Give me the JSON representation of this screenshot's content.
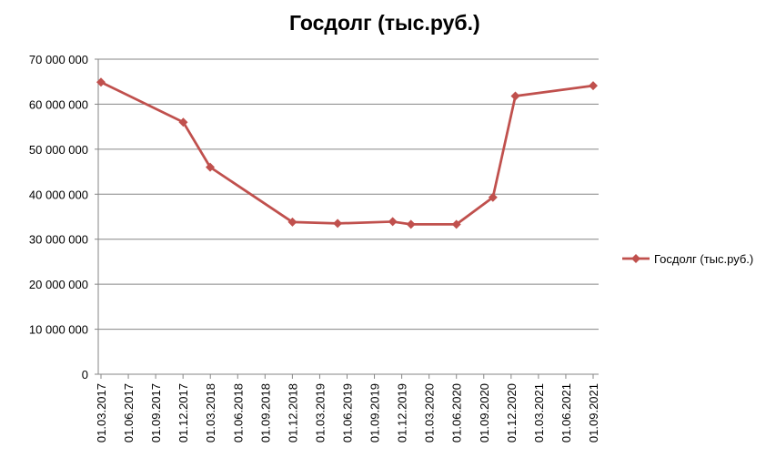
{
  "chart_data": {
    "type": "line",
    "title": "Госдолг (тыс.руб.)",
    "xlabel": "",
    "ylabel": "",
    "ylim": [
      0,
      70000000
    ],
    "y_ticks": [
      0,
      10000000,
      20000000,
      30000000,
      40000000,
      50000000,
      60000000,
      70000000
    ],
    "y_tick_labels": [
      "0",
      "10 000 000",
      "20 000 000",
      "30 000 000",
      "40 000 000",
      "50 000 000",
      "60 000 000",
      "70 000 000"
    ],
    "x_tick_labels": [
      "01.03.2017",
      "01.06.2017",
      "01.09.2017",
      "01.12.2017",
      "01.03.2018",
      "01.06.2018",
      "01.09.2018",
      "01.12.2018",
      "01.03.2019",
      "01.06.2019",
      "01.09.2019",
      "01.12.2019",
      "01.03.2020",
      "01.06.2020",
      "01.09.2020",
      "01.12.2020",
      "01.03.2021",
      "01.06.2021",
      "01.09.2021"
    ],
    "xlim": [
      "2017-03-01",
      "2021-09-01"
    ],
    "grid": true,
    "legend": "right",
    "series": [
      {
        "name": "Госдолг (тыс.руб.)",
        "color": "#c0504d",
        "marker": "diamond",
        "points": [
          {
            "x": "2017-03-01",
            "y": 64900000
          },
          {
            "x": "2017-12-01",
            "y": 56000000
          },
          {
            "x": "2018-03-01",
            "y": 46000000
          },
          {
            "x": "2018-12-01",
            "y": 33800000
          },
          {
            "x": "2019-05-01",
            "y": 33500000
          },
          {
            "x": "2019-11-01",
            "y": 33900000
          },
          {
            "x": "2020-01-01",
            "y": 33300000
          },
          {
            "x": "2020-06-01",
            "y": 33300000
          },
          {
            "x": "2020-10-01",
            "y": 39300000
          },
          {
            "x": "2020-12-15",
            "y": 61800000
          },
          {
            "x": "2021-09-01",
            "y": 64100000
          }
        ]
      }
    ]
  }
}
